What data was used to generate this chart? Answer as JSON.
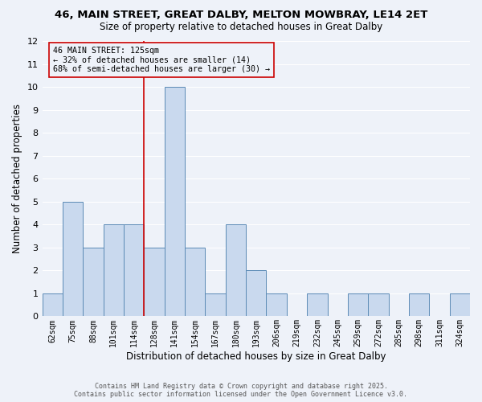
{
  "title1": "46, MAIN STREET, GREAT DALBY, MELTON MOWBRAY, LE14 2ET",
  "title2": "Size of property relative to detached houses in Great Dalby",
  "xlabel": "Distribution of detached houses by size in Great Dalby",
  "ylabel": "Number of detached properties",
  "bar_labels": [
    "62sqm",
    "75sqm",
    "88sqm",
    "101sqm",
    "114sqm",
    "128sqm",
    "141sqm",
    "154sqm",
    "167sqm",
    "180sqm",
    "193sqm",
    "206sqm",
    "219sqm",
    "232sqm",
    "245sqm",
    "259sqm",
    "272sqm",
    "285sqm",
    "298sqm",
    "311sqm",
    "324sqm"
  ],
  "bar_values": [
    1,
    5,
    3,
    4,
    4,
    3,
    10,
    3,
    1,
    4,
    2,
    1,
    0,
    1,
    0,
    1,
    1,
    0,
    1,
    0,
    1
  ],
  "bar_color": "#c9d9ee",
  "bar_edgecolor": "#5b8ab5",
  "ylim": [
    0,
    12
  ],
  "yticks": [
    0,
    1,
    2,
    3,
    4,
    5,
    6,
    7,
    8,
    9,
    10,
    11,
    12
  ],
  "vline_x": 4.5,
  "vline_color": "#cc0000",
  "annotation_text": "46 MAIN STREET: 125sqm\n← 32% of detached houses are smaller (14)\n68% of semi-detached houses are larger (30) →",
  "annotation_box_color": "#cc0000",
  "background_color": "#eef2f9",
  "grid_color": "#ffffff",
  "footer_line1": "Contains HM Land Registry data © Crown copyright and database right 2025.",
  "footer_line2": "Contains public sector information licensed under the Open Government Licence v3.0."
}
